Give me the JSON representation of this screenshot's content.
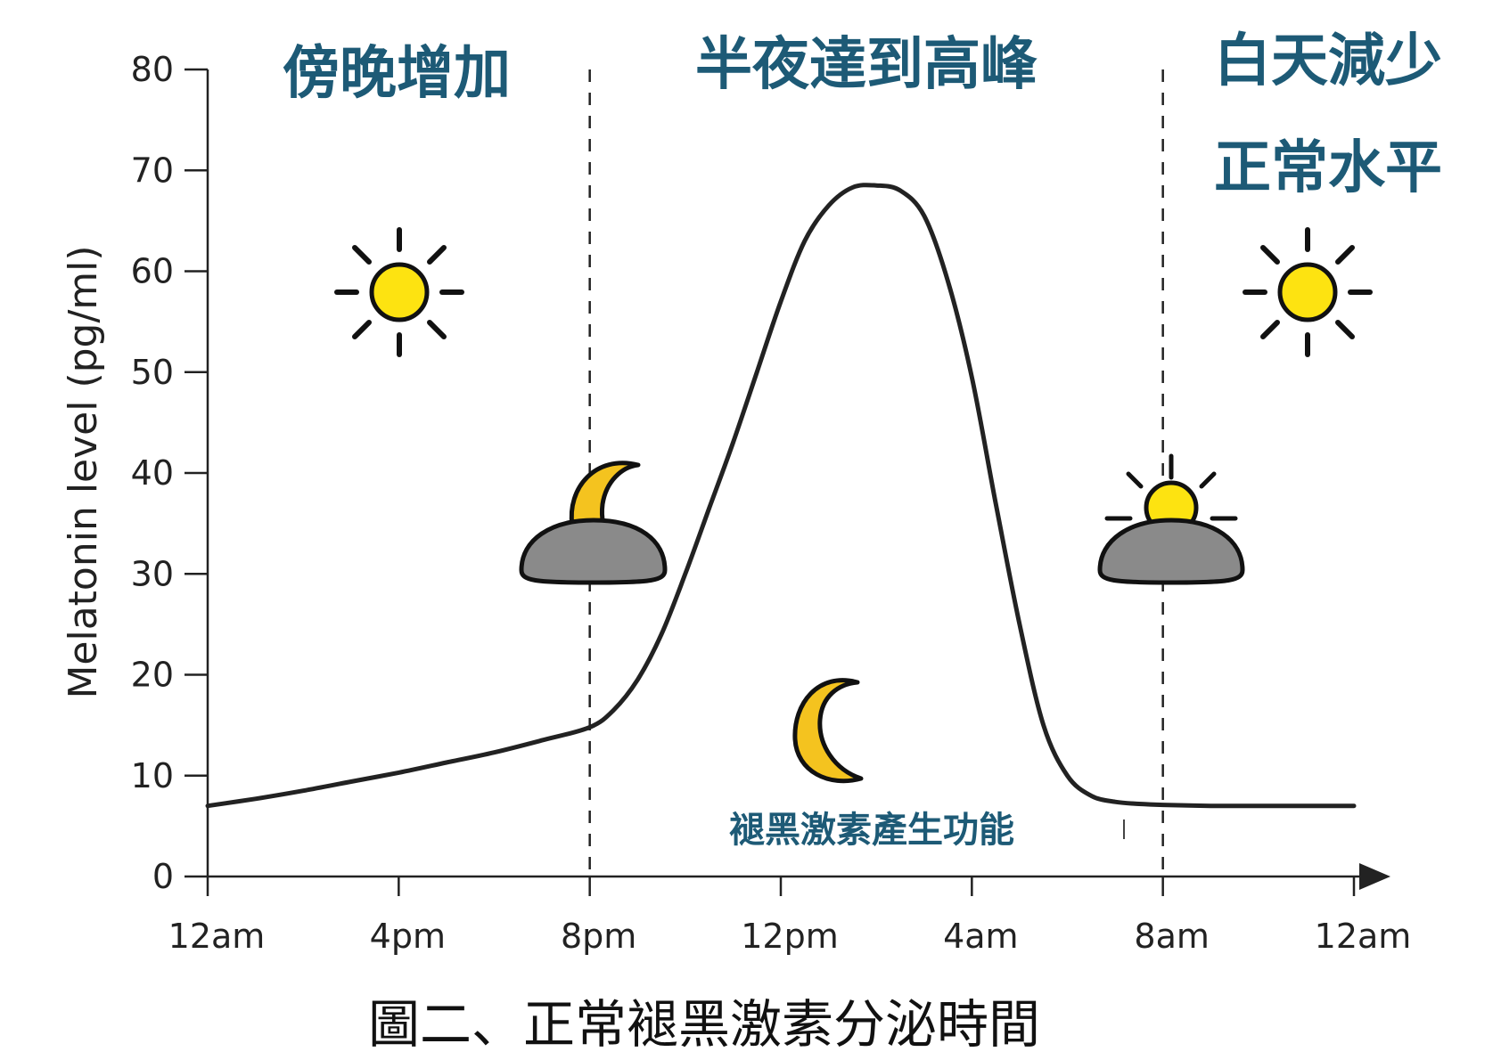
{
  "chart_data": {
    "type": "line",
    "title": "",
    "xlabel": "",
    "ylabel": "Melatonin level (pg/ml)",
    "ylim": [
      0,
      80
    ],
    "y_ticks": [
      0,
      10,
      20,
      30,
      40,
      50,
      60,
      70,
      80
    ],
    "x_tick_labels": [
      "12am",
      "4pm",
      "8pm",
      "12pm",
      "4am",
      "8am",
      "12am"
    ],
    "x_ticks_hours": [
      0,
      4,
      8,
      12,
      16,
      20,
      24
    ],
    "grid": false,
    "series": [
      {
        "x": [
          0,
          1,
          2,
          3,
          4,
          5,
          6,
          7,
          8,
          8.5,
          9,
          9.5,
          10,
          10.5,
          11,
          11.5,
          12,
          12.5,
          13,
          13.5,
          14,
          14.5,
          15,
          15.5,
          16,
          16.5,
          17,
          17.5,
          18,
          18.5,
          19,
          19.5,
          20,
          21,
          22,
          23,
          24
        ],
        "values": [
          7,
          7.7,
          8.5,
          9.4,
          10.3,
          11.3,
          12.3,
          13.5,
          14.8,
          16.5,
          19.5,
          24,
          30,
          36.5,
          43,
          50,
          57,
          63,
          66.5,
          68.3,
          68.5,
          68,
          65.5,
          59,
          49.5,
          37,
          25,
          15,
          10,
          8,
          7.4,
          7.2,
          7.1,
          7,
          7,
          7,
          7
        ]
      }
    ],
    "phase_boundaries_hours": [
      8,
      20
    ],
    "phase_labels": [
      "傍晚增加",
      "半夜達到高峰",
      "白天減少",
      "正常水平"
    ],
    "annotations": [
      "褪黑激素產生功能"
    ],
    "caption": "圖二、正常褪黑激素分泌時間"
  },
  "icons": [
    "sun-icon",
    "moon-over-cloud-icon",
    "crescent-moon-icon",
    "sunrise-over-cloud-icon",
    "sun-icon"
  ],
  "colors": {
    "phase_text": "#1d5a76",
    "sun_fill": "#fde311",
    "moon_fill": "#f4c31f",
    "cloud_fill": "#8a8a8a",
    "curve": "#222222"
  }
}
